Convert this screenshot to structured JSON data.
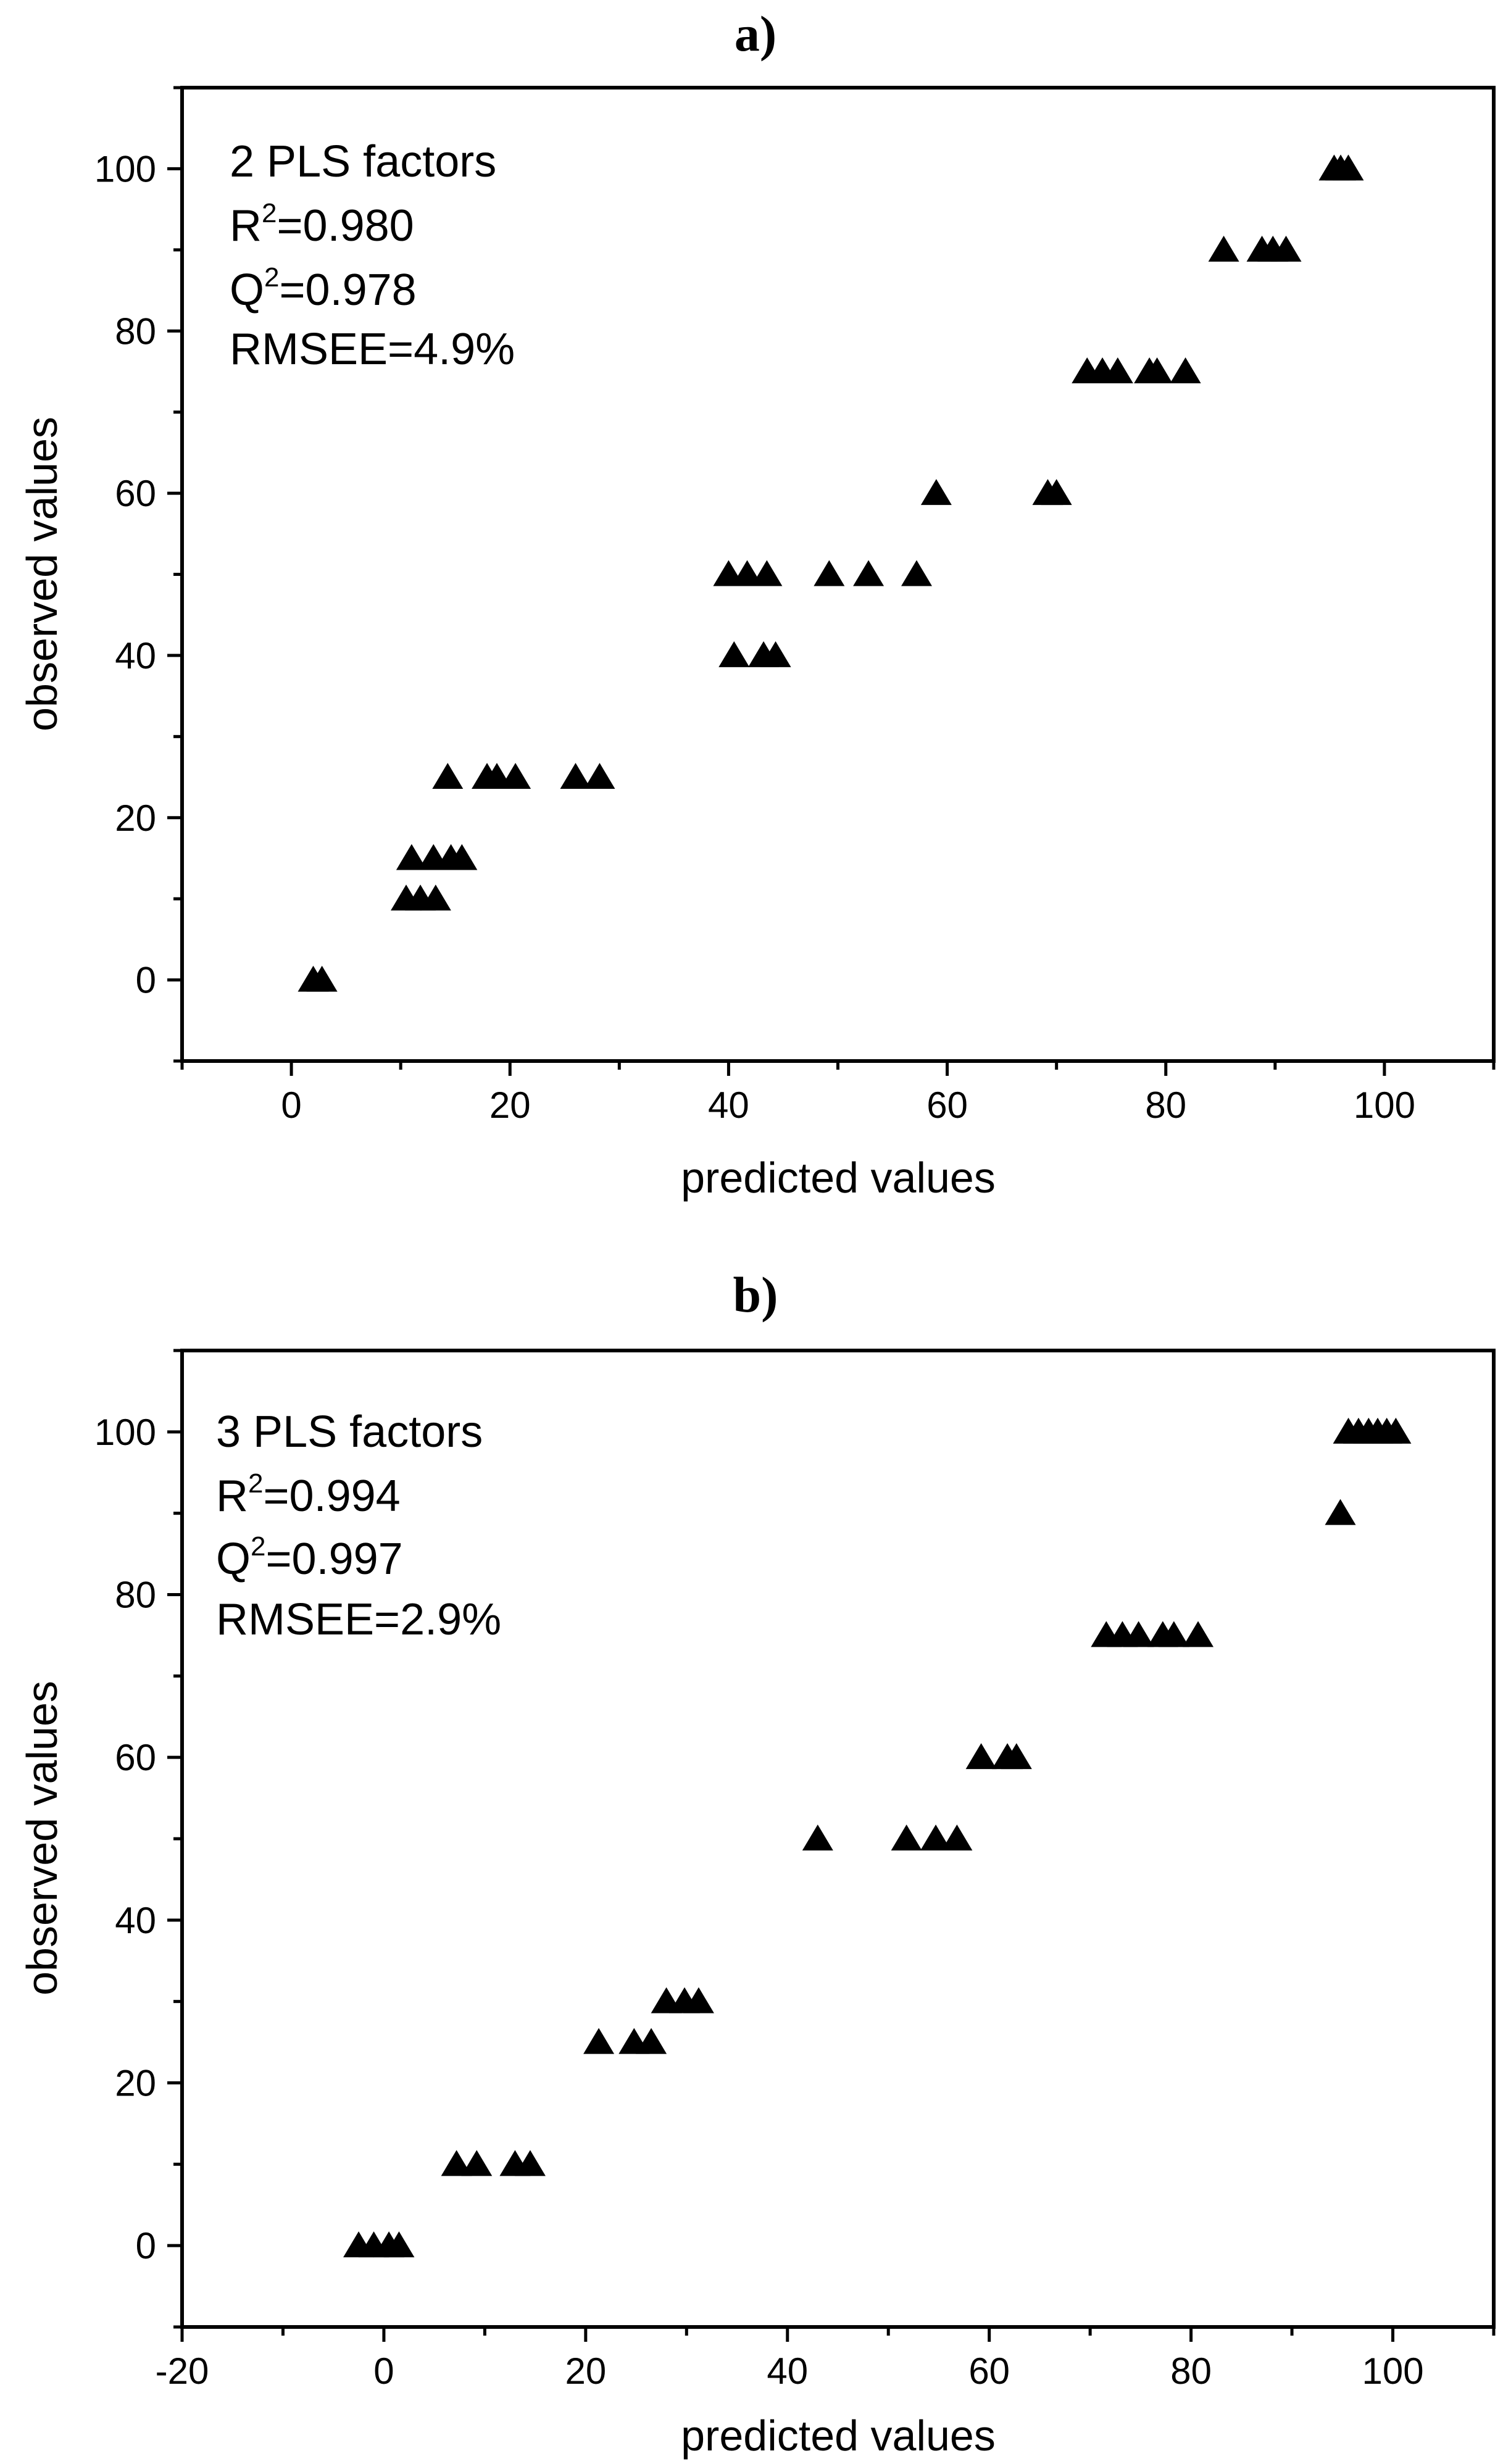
{
  "chart_data": [
    {
      "type": "scatter",
      "panel_label": "a)",
      "xlabel": "predicted values",
      "ylabel": "observed values",
      "xlim": [
        -10,
        110
      ],
      "ylim": [
        -10,
        110
      ],
      "xticks": [
        "0",
        "20",
        "40",
        "60",
        "80",
        "100"
      ],
      "yticks": [
        "0",
        "20",
        "40",
        "60",
        "80",
        "100"
      ],
      "marker": "triangle",
      "annotation": {
        "factors": "2 PLS factors",
        "r2_prefix": "R",
        "r2_exp": "2",
        "r2_value": "=0.980",
        "q2_prefix": "Q",
        "q2_exp": "2",
        "q2_value": "=0.978",
        "rmsee": "RMSEE=4.9%"
      },
      "points": [
        {
          "x": 2,
          "y": 0
        },
        {
          "x": 2.8,
          "y": 0
        },
        {
          "x": 10.5,
          "y": 10
        },
        {
          "x": 11.8,
          "y": 10
        },
        {
          "x": 13.2,
          "y": 10
        },
        {
          "x": 11,
          "y": 15
        },
        {
          "x": 13,
          "y": 15
        },
        {
          "x": 14.6,
          "y": 15
        },
        {
          "x": 15.6,
          "y": 15
        },
        {
          "x": 14.3,
          "y": 25
        },
        {
          "x": 17.9,
          "y": 25
        },
        {
          "x": 18.8,
          "y": 25
        },
        {
          "x": 20.5,
          "y": 25
        },
        {
          "x": 26,
          "y": 25
        },
        {
          "x": 28.2,
          "y": 25
        },
        {
          "x": 40.5,
          "y": 40
        },
        {
          "x": 43.2,
          "y": 40
        },
        {
          "x": 44.3,
          "y": 40
        },
        {
          "x": 40,
          "y": 50
        },
        {
          "x": 41.7,
          "y": 50
        },
        {
          "x": 43.5,
          "y": 50
        },
        {
          "x": 49.2,
          "y": 50
        },
        {
          "x": 52.8,
          "y": 50
        },
        {
          "x": 57.2,
          "y": 50
        },
        {
          "x": 59,
          "y": 60
        },
        {
          "x": 69.2,
          "y": 60
        },
        {
          "x": 70,
          "y": 60
        },
        {
          "x": 72.8,
          "y": 75
        },
        {
          "x": 74.2,
          "y": 75
        },
        {
          "x": 75.6,
          "y": 75
        },
        {
          "x": 78.5,
          "y": 75
        },
        {
          "x": 79.2,
          "y": 75
        },
        {
          "x": 81.8,
          "y": 75
        },
        {
          "x": 85.3,
          "y": 90
        },
        {
          "x": 88.8,
          "y": 90
        },
        {
          "x": 89.8,
          "y": 90
        },
        {
          "x": 91,
          "y": 90
        },
        {
          "x": 95.4,
          "y": 100
        },
        {
          "x": 96,
          "y": 100
        },
        {
          "x": 96.7,
          "y": 100
        }
      ]
    },
    {
      "type": "scatter",
      "panel_label": "b)",
      "xlabel": "predicted values",
      "ylabel": "observed values",
      "xlim": [
        -20,
        110
      ],
      "ylim": [
        -10,
        110
      ],
      "xticks": [
        "-20",
        "0",
        "20",
        "40",
        "60",
        "80",
        "100"
      ],
      "yticks": [
        "0",
        "20",
        "40",
        "60",
        "80",
        "100"
      ],
      "marker": "triangle",
      "annotation": {
        "factors": "3 PLS factors",
        "r2_prefix": "R",
        "r2_exp": "2",
        "r2_value": "=0.994",
        "q2_prefix": "Q",
        "q2_exp": "2",
        "q2_value": "=0.997",
        "rmsee": "RMSEE=2.9%"
      },
      "points": [
        {
          "x": -2.5,
          "y": 0
        },
        {
          "x": -1,
          "y": 0
        },
        {
          "x": 0.5,
          "y": 0
        },
        {
          "x": 1.5,
          "y": 0
        },
        {
          "x": 7.2,
          "y": 10
        },
        {
          "x": 9.2,
          "y": 10
        },
        {
          "x": 13,
          "y": 10
        },
        {
          "x": 14.5,
          "y": 10
        },
        {
          "x": 21.3,
          "y": 25
        },
        {
          "x": 24.8,
          "y": 25
        },
        {
          "x": 26.5,
          "y": 25
        },
        {
          "x": 28,
          "y": 30
        },
        {
          "x": 29.8,
          "y": 30
        },
        {
          "x": 31.2,
          "y": 30
        },
        {
          "x": 43,
          "y": 50
        },
        {
          "x": 51.8,
          "y": 50
        },
        {
          "x": 54.7,
          "y": 50
        },
        {
          "x": 56.8,
          "y": 50
        },
        {
          "x": 59.2,
          "y": 60
        },
        {
          "x": 61.8,
          "y": 60
        },
        {
          "x": 62.7,
          "y": 60
        },
        {
          "x": 71.6,
          "y": 75
        },
        {
          "x": 73.2,
          "y": 75
        },
        {
          "x": 74.8,
          "y": 75
        },
        {
          "x": 77.2,
          "y": 75
        },
        {
          "x": 78.3,
          "y": 75
        },
        {
          "x": 80.7,
          "y": 75
        },
        {
          "x": 94.8,
          "y": 90
        },
        {
          "x": 95.6,
          "y": 100
        },
        {
          "x": 96.6,
          "y": 100
        },
        {
          "x": 97.6,
          "y": 100
        },
        {
          "x": 98.5,
          "y": 100
        },
        {
          "x": 99.4,
          "y": 100
        },
        {
          "x": 100.3,
          "y": 100
        }
      ]
    }
  ]
}
